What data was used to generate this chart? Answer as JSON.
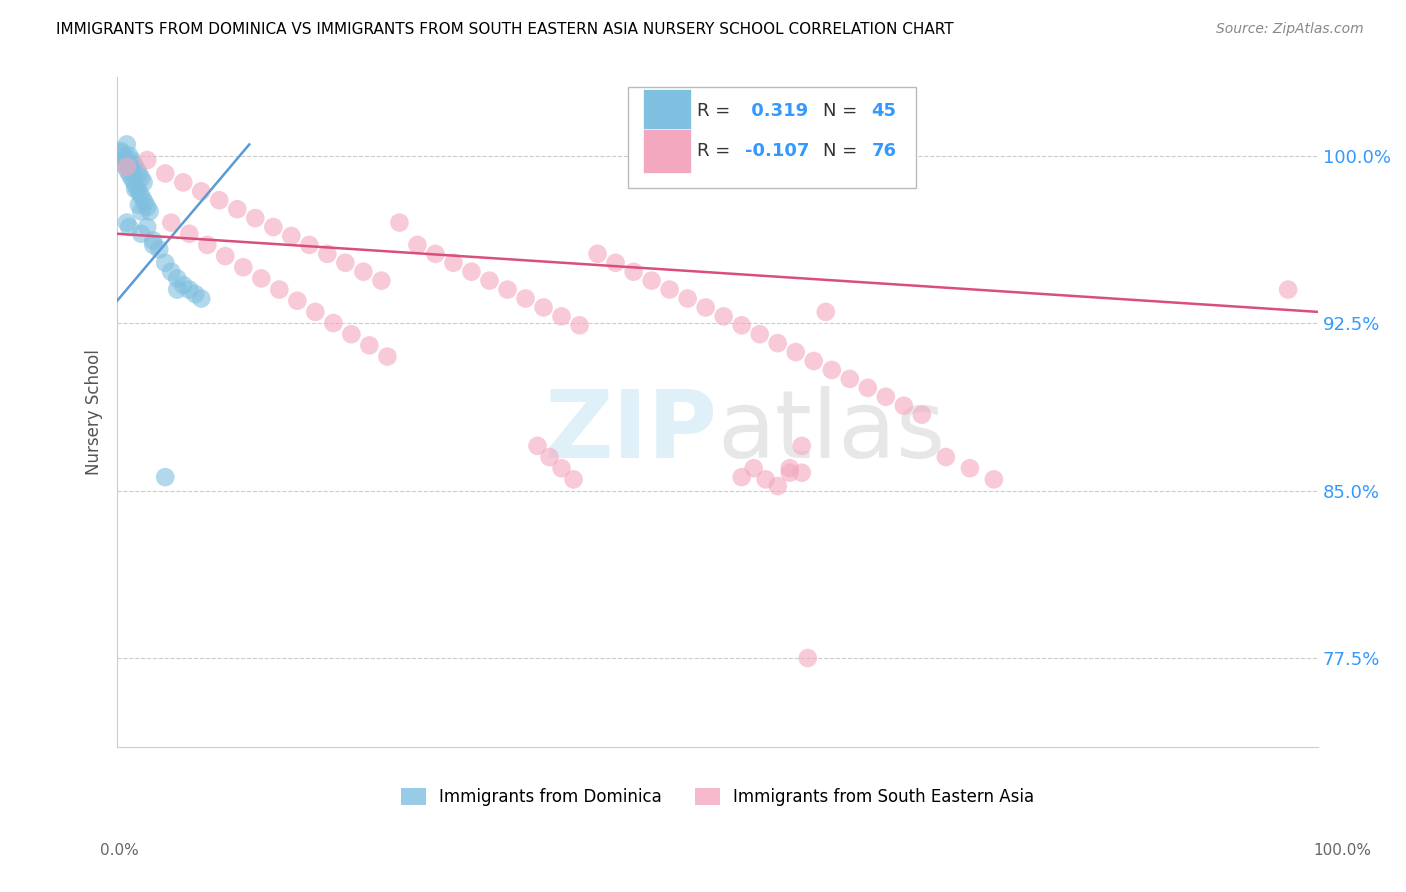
{
  "title": "IMMIGRANTS FROM DOMINICA VS IMMIGRANTS FROM SOUTH EASTERN ASIA NURSERY SCHOOL CORRELATION CHART",
  "source": "Source: ZipAtlas.com",
  "ylabel": "Nursery School",
  "yticks": [
    "77.5%",
    "85.0%",
    "92.5%",
    "100.0%"
  ],
  "ytick_values": [
    0.775,
    0.85,
    0.925,
    1.0
  ],
  "xlim": [
    0.0,
    1.0
  ],
  "ylim": [
    0.735,
    1.035
  ],
  "legend1_label": "Immigrants from Dominica",
  "legend2_label": "Immigrants from South Eastern Asia",
  "R1": 0.319,
  "N1": 45,
  "R2": -0.107,
  "N2": 76,
  "color1": "#7fbfdf",
  "color2": "#f4a8bf",
  "line1_color": "#5b9bd5",
  "line2_color": "#d94f7a",
  "blue_line_x0": 0.0,
  "blue_line_x1": 0.11,
  "blue_line_y0": 0.935,
  "blue_line_y1": 1.005,
  "pink_line_x0": 0.0,
  "pink_line_x1": 1.0,
  "pink_line_y0": 0.965,
  "pink_line_y1": 0.93,
  "blue_dots_x": [
    0.008,
    0.01,
    0.012,
    0.014,
    0.016,
    0.018,
    0.02,
    0.022,
    0.005,
    0.007,
    0.009,
    0.011,
    0.013,
    0.015,
    0.017,
    0.019,
    0.021,
    0.023,
    0.025,
    0.027,
    0.003,
    0.004,
    0.006,
    0.008,
    0.01,
    0.012,
    0.015,
    0.018,
    0.02,
    0.025,
    0.03,
    0.035,
    0.04,
    0.045,
    0.05,
    0.055,
    0.06,
    0.065,
    0.07,
    0.008,
    0.01,
    0.02,
    0.03,
    0.04,
    0.05
  ],
  "blue_dots_y": [
    1.005,
    1.0,
    0.998,
    0.996,
    0.994,
    0.992,
    0.99,
    0.988,
    0.997,
    0.995,
    0.993,
    0.991,
    0.989,
    0.987,
    0.985,
    0.983,
    0.981,
    0.979,
    0.977,
    0.975,
    1.002,
    1.001,
    0.999,
    0.998,
    0.996,
    0.994,
    0.985,
    0.978,
    0.975,
    0.968,
    0.962,
    0.958,
    0.952,
    0.948,
    0.945,
    0.942,
    0.94,
    0.938,
    0.936,
    0.97,
    0.968,
    0.965,
    0.96,
    0.856,
    0.94
  ],
  "pink_dots_x": [
    0.008,
    0.025,
    0.04,
    0.055,
    0.07,
    0.085,
    0.1,
    0.115,
    0.13,
    0.145,
    0.16,
    0.175,
    0.19,
    0.205,
    0.22,
    0.235,
    0.25,
    0.265,
    0.28,
    0.295,
    0.31,
    0.325,
    0.34,
    0.355,
    0.37,
    0.385,
    0.4,
    0.415,
    0.43,
    0.445,
    0.46,
    0.475,
    0.49,
    0.505,
    0.52,
    0.535,
    0.55,
    0.565,
    0.58,
    0.595,
    0.61,
    0.625,
    0.64,
    0.655,
    0.67,
    0.045,
    0.06,
    0.075,
    0.09,
    0.105,
    0.12,
    0.135,
    0.15,
    0.165,
    0.18,
    0.195,
    0.21,
    0.225,
    0.57,
    0.69,
    0.71,
    0.73,
    0.52,
    0.56,
    0.35,
    0.36,
    0.37,
    0.38,
    0.53,
    0.54,
    0.55,
    0.56,
    0.57,
    0.975,
    0.575,
    0.59
  ],
  "pink_dots_y": [
    0.995,
    0.998,
    0.992,
    0.988,
    0.984,
    0.98,
    0.976,
    0.972,
    0.968,
    0.964,
    0.96,
    0.956,
    0.952,
    0.948,
    0.944,
    0.97,
    0.96,
    0.956,
    0.952,
    0.948,
    0.944,
    0.94,
    0.936,
    0.932,
    0.928,
    0.924,
    0.956,
    0.952,
    0.948,
    0.944,
    0.94,
    0.936,
    0.932,
    0.928,
    0.924,
    0.92,
    0.916,
    0.912,
    0.908,
    0.904,
    0.9,
    0.896,
    0.892,
    0.888,
    0.884,
    0.97,
    0.965,
    0.96,
    0.955,
    0.95,
    0.945,
    0.94,
    0.935,
    0.93,
    0.925,
    0.92,
    0.915,
    0.91,
    0.87,
    0.865,
    0.86,
    0.855,
    0.856,
    0.858,
    0.87,
    0.865,
    0.86,
    0.855,
    0.86,
    0.855,
    0.852,
    0.86,
    0.858,
    0.94,
    0.775,
    0.93
  ]
}
